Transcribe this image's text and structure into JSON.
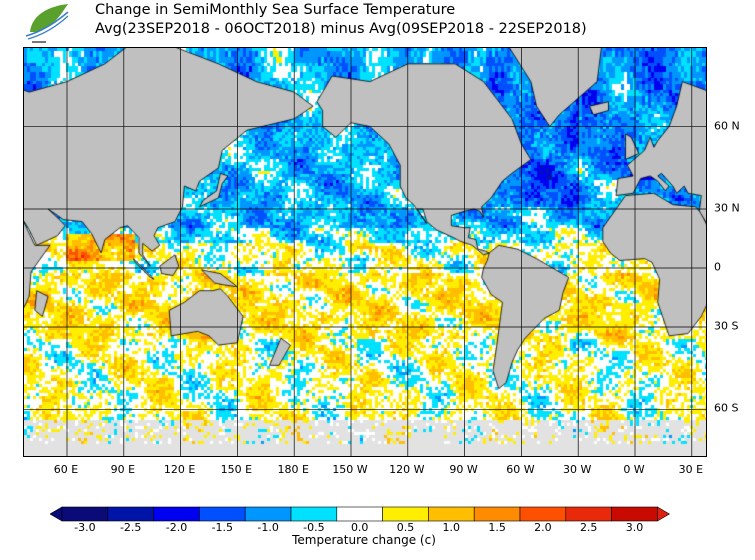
{
  "title": {
    "line1": "Change in SemiMonthly Sea Surface Temperature",
    "line2": "Avg(23SEP2018 - 06OCT2018) minus Avg(09SEP2018 - 22SEP2018)"
  },
  "map": {
    "lon_labels": [
      "60 E",
      "90 E",
      "120 E",
      "150 E",
      "180 E",
      "150 W",
      "120 W",
      "90 W",
      "60 W",
      "30 W",
      "0 W",
      "30 E"
    ],
    "lat_labels": [
      "60 N",
      "30 N",
      "0",
      "30 S",
      "60 S"
    ],
    "land_color": "#c0c0c0",
    "ice_color": "#e2e2e2"
  },
  "colorbar": {
    "title": "Temperature change  (c)",
    "labels": [
      "-3.0",
      "-2.5",
      "-2.0",
      "-1.5",
      "-1.0",
      "-0.5",
      "0.0",
      "0.5",
      "1.0",
      "1.5",
      "2.0",
      "2.5",
      "3.0"
    ],
    "colors": [
      "#0a0a78",
      "#0014a8",
      "#0000f0",
      "#0050ff",
      "#0096ff",
      "#00e0ff",
      "#ffffff",
      "#ffee00",
      "#ffbe00",
      "#ff8c00",
      "#ff5000",
      "#e82a0a",
      "#c80a00"
    ],
    "under_color": "#0a0a78",
    "over_color": "#e02010"
  }
}
